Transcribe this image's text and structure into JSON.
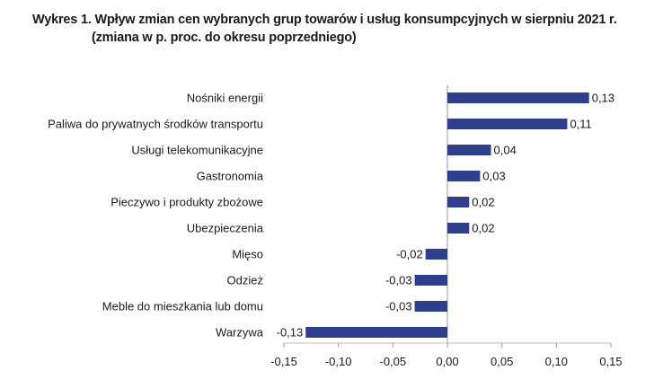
{
  "title": "Wykres 1. Wpływ zmian cen wybranych grup towarów i usług konsumpcyjnych w sierpniu 2021 r.",
  "subtitle": "(zmiana w p. proc. do okresu poprzedniego)",
  "chart_data": {
    "type": "bar",
    "orientation": "horizontal",
    "title": "Wykres 1. Wpływ zmian cen wybranych grup towarów i usług konsumpcyjnych w sierpniu 2021 r.",
    "subtitle": "(zmiana w p. proc. do okresu poprzedniego)",
    "categories": [
      "Nośniki energii",
      "Paliwa do prywatnych środków transportu",
      "Usługi telekomunikacyjne",
      "Gastronomia",
      "Pieczywo i produkty zbożowe",
      "Ubezpieczenia",
      "Mięso",
      "Odzież",
      "Meble do mieszkania lub domu",
      "Warzywa"
    ],
    "values": [
      0.13,
      0.11,
      0.04,
      0.03,
      0.02,
      0.02,
      -0.02,
      -0.03,
      -0.03,
      -0.13
    ],
    "value_labels": [
      "0,13",
      "0,11",
      "0,04",
      "0,03",
      "0,02",
      "0,02",
      "-0,02",
      "-0,03",
      "-0,03",
      "-0,13"
    ],
    "xlim": [
      -0.15,
      0.15
    ],
    "xticks": [
      -0.15,
      -0.1,
      -0.05,
      0.0,
      0.05,
      0.1,
      0.15
    ],
    "xtick_labels": [
      "-0,15",
      "-0,10",
      "-0,05",
      "0,00",
      "0,05",
      "0,10",
      "0,15"
    ],
    "bar_color": "#2e3f8f",
    "grid": false,
    "legend": "none"
  }
}
